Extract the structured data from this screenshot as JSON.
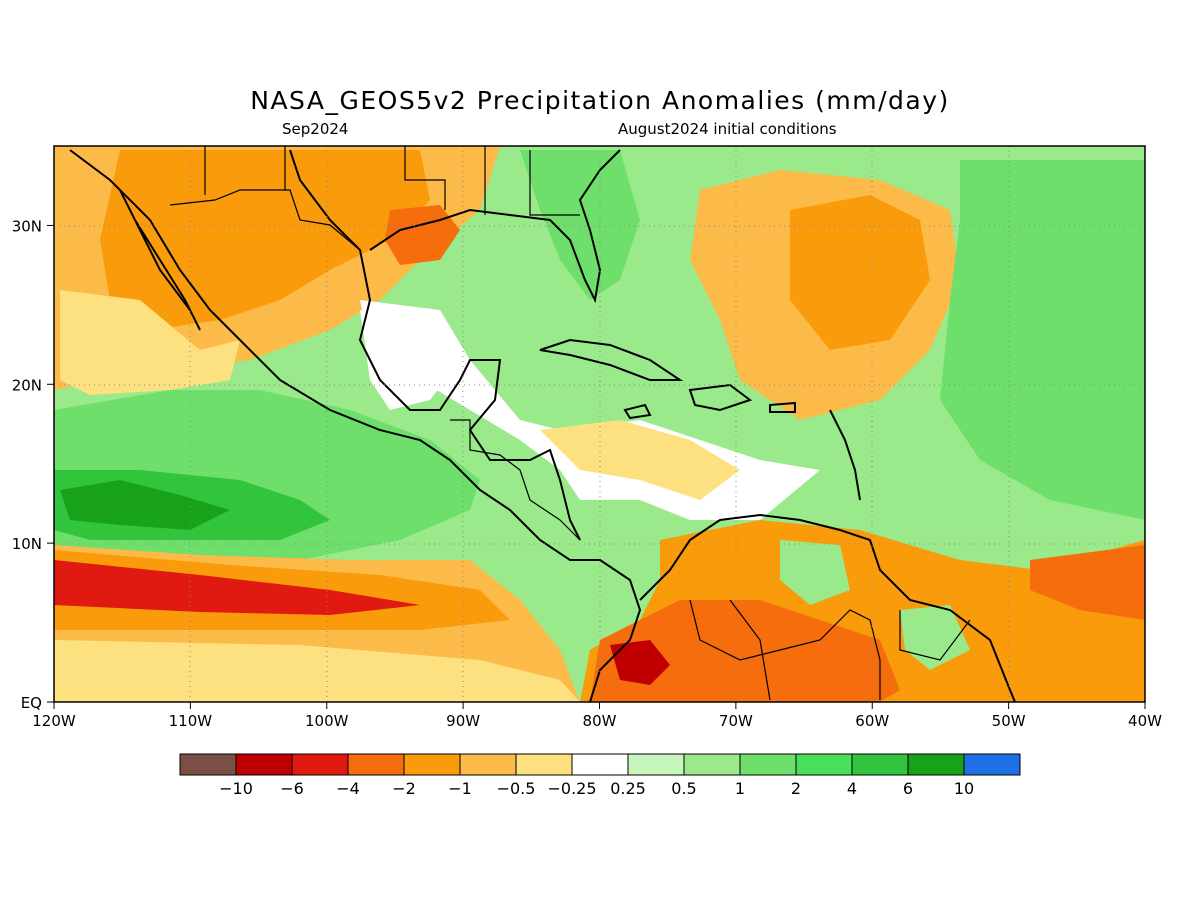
{
  "title": "NASA_GEOS5v2 Precipitation Anomalies (mm/day)",
  "forecast_month": "Sep2024",
  "initial_conditions": "August2024 initial conditions",
  "map": {
    "lon_range": [
      -120,
      -40
    ],
    "lat_range": [
      0,
      35
    ],
    "x_ticks": [
      "120W",
      "110W",
      "100W",
      "90W",
      "80W",
      "70W",
      "60W",
      "50W",
      "40W"
    ],
    "y_ticks": [
      "EQ",
      "10N",
      "20N",
      "30N"
    ]
  },
  "colorbar": {
    "colors": [
      "#7a4f45",
      "#c00000",
      "#e01a10",
      "#f56d0c",
      "#f99b0a",
      "#fcbb48",
      "#fde07f",
      "#ffffff",
      "#c7f6bc",
      "#9aea8c",
      "#6fdf6c",
      "#47e05a",
      "#33c43e",
      "#17a21a",
      "#1f6fe6"
    ],
    "labels": [
      "−10",
      "−6",
      "−4",
      "−2",
      "−1",
      "−0.5",
      "−0.25",
      "0.25",
      "0.5",
      "1",
      "2",
      "4",
      "6",
      "10"
    ]
  }
}
